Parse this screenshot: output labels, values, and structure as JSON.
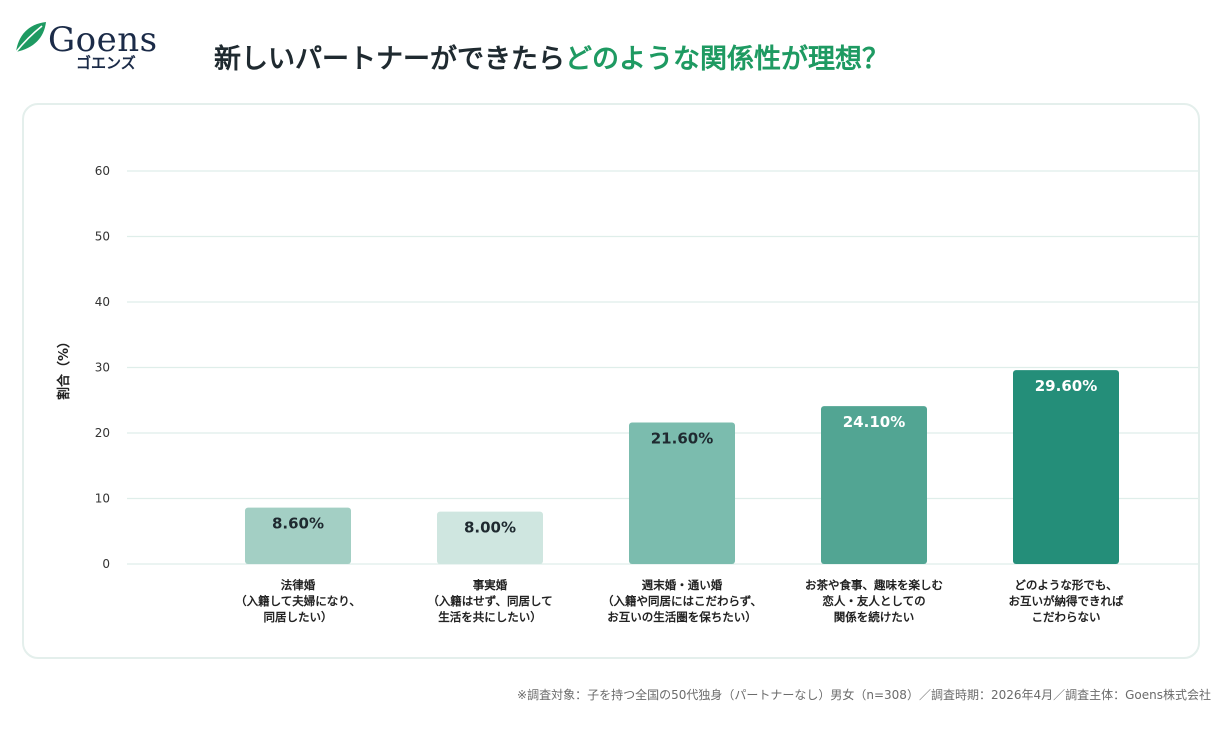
{
  "brand": {
    "name": "Goens",
    "kana": "ゴエンズ"
  },
  "title": {
    "main": "新しいパートナーができたら",
    "accent": "どのような関係性が理想？"
  },
  "chart_data": {
    "type": "bar",
    "categories": [
      [
        "法律婚",
        "（入籍して夫婦になり、",
        "同居したい）"
      ],
      [
        "事実婚",
        "（入籍はせず、同居して",
        "生活を共にしたい）"
      ],
      [
        "週末婚・通い婚",
        "（入籍や同居にはこだわらず、",
        "お互いの生活圏を保ちたい）"
      ],
      [
        "お茶や食事、趣味を楽しむ",
        "恋人・友人としての",
        "関係を続けたい"
      ],
      [
        "どのような形でも、",
        "お互いが納得できれば",
        "こだわらない"
      ]
    ],
    "values": [
      8.6,
      8.0,
      21.6,
      24.1,
      29.6
    ],
    "data_labels": [
      "8.60%",
      "8.00%",
      "21.60%",
      "24.10%",
      "29.60%"
    ],
    "colors": [
      "#a3cfc4",
      "#cfe6e0",
      "#7bbcae",
      "#52a593",
      "#248e79"
    ],
    "ylabel": "割合（%）",
    "ylim": [
      0,
      60
    ],
    "yticks": [
      0,
      10,
      20,
      30,
      40,
      50,
      60
    ],
    "grid": true
  },
  "footnote": "※調査対象：子を持つ全国の50代独身（パートナーなし）男女（n=308）／調査時期：2026年4月／調査主体：Goens株式会社"
}
